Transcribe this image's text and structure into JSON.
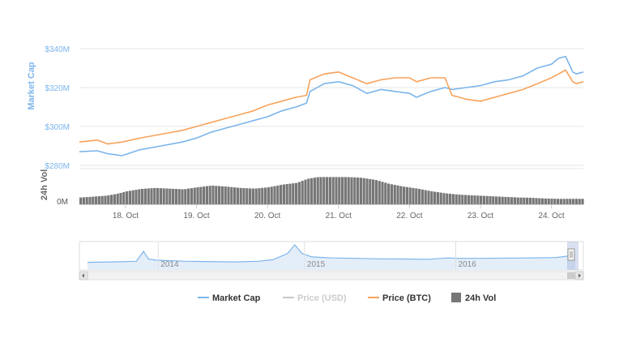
{
  "colors": {
    "market_cap": "#7cb5ec",
    "price_usd": "#c8c8c8",
    "price_btc": "#f7a35c",
    "volume": "#777777",
    "grid": "#e6e6e6",
    "axis_title": "#7cb5ec"
  },
  "legend": {
    "market_cap": "Market Cap",
    "price_usd": "Price (USD)",
    "price_btc": "Price (BTC)",
    "volume": "24h Vol"
  },
  "navigator": {
    "year_labels": [
      "2014",
      "2015",
      "2016"
    ],
    "scroll_left_icon": "arrow-left-icon",
    "scroll_right_icon": "arrow-right-icon",
    "handle_icon": "drag-handle-icon"
  },
  "chart_data": {
    "type": "line",
    "x_unit": "days",
    "x_range": [
      17.35,
      24.45
    ],
    "x_ticks": [
      18,
      19,
      20,
      21,
      22,
      23,
      24
    ],
    "x_tick_labels": [
      "18. Oct",
      "19. Oct",
      "20. Oct",
      "21. Oct",
      "22. Oct",
      "23. Oct",
      "24. Oct"
    ],
    "y_axis": {
      "title": "Market Cap",
      "ticks": [
        280,
        300,
        320,
        340
      ],
      "tick_labels": [
        "$280M",
        "$300M",
        "$320M",
        "$340M"
      ],
      "ylim": [
        280,
        340
      ]
    },
    "volume_axis": {
      "title": "24h Vol",
      "tick_labels": [
        "0M"
      ],
      "ylim": [
        0,
        1
      ]
    },
    "series": [
      {
        "name": "Market Cap",
        "x": [
          17.35,
          17.6,
          17.75,
          17.95,
          18.2,
          18.5,
          18.8,
          19.0,
          19.2,
          19.4,
          19.6,
          19.8,
          20.0,
          20.2,
          20.4,
          20.55,
          20.6,
          20.8,
          21.0,
          21.2,
          21.4,
          21.6,
          21.8,
          22.0,
          22.1,
          22.3,
          22.5,
          22.6,
          22.8,
          23.0,
          23.2,
          23.4,
          23.6,
          23.8,
          24.0,
          24.1,
          24.2,
          24.3,
          24.35,
          24.45
        ],
        "values": [
          287,
          287.5,
          286,
          285,
          288,
          290,
          292,
          294,
          297,
          299,
          301,
          303,
          305,
          308,
          310,
          312,
          318,
          322,
          323,
          321,
          317,
          319,
          318,
          317,
          315,
          318,
          320,
          319,
          320,
          321,
          323,
          324,
          326,
          330,
          332,
          335,
          336,
          328,
          327,
          328
        ]
      },
      {
        "name": "Price (BTC)",
        "x": [
          17.35,
          17.6,
          17.75,
          17.95,
          18.2,
          18.5,
          18.8,
          19.0,
          19.2,
          19.4,
          19.6,
          19.8,
          20.0,
          20.2,
          20.4,
          20.55,
          20.6,
          20.8,
          21.0,
          21.2,
          21.4,
          21.6,
          21.8,
          22.0,
          22.1,
          22.3,
          22.5,
          22.6,
          22.8,
          23.0,
          23.2,
          23.4,
          23.6,
          23.8,
          24.0,
          24.1,
          24.2,
          24.3,
          24.35,
          24.45
        ],
        "values": [
          292,
          293,
          291,
          292,
          294,
          296,
          298,
          300,
          302,
          304,
          306,
          308,
          311,
          313,
          315,
          316,
          324,
          327,
          328,
          325,
          322,
          324,
          325,
          325,
          323,
          325,
          325,
          316,
          314,
          313,
          315,
          317,
          319,
          322,
          325,
          327,
          329,
          323,
          322,
          323
        ]
      }
    ],
    "volume": {
      "name": "24h Vol",
      "x": [
        17.35,
        17.5,
        17.7,
        17.85,
        18.0,
        18.2,
        18.4,
        18.6,
        18.8,
        19.0,
        19.2,
        19.4,
        19.6,
        19.8,
        20.0,
        20.2,
        20.4,
        20.55,
        20.7,
        20.9,
        21.1,
        21.3,
        21.5,
        21.7,
        21.9,
        22.1,
        22.3,
        22.5,
        22.7,
        22.9,
        23.1,
        23.3,
        23.5,
        23.7,
        23.9,
        24.1,
        24.3,
        24.45
      ],
      "values": [
        0.2,
        0.22,
        0.25,
        0.3,
        0.38,
        0.45,
        0.48,
        0.46,
        0.44,
        0.5,
        0.55,
        0.52,
        0.48,
        0.46,
        0.5,
        0.58,
        0.63,
        0.75,
        0.8,
        0.8,
        0.8,
        0.78,
        0.72,
        0.6,
        0.52,
        0.46,
        0.38,
        0.32,
        0.28,
        0.26,
        0.24,
        0.22,
        0.2,
        0.19,
        0.17,
        0.16,
        0.16,
        0.16
      ]
    },
    "navigator_series": {
      "x": [
        0,
        0.05,
        0.1,
        0.115,
        0.125,
        0.14,
        0.2,
        0.3,
        0.35,
        0.38,
        0.41,
        0.425,
        0.44,
        0.46,
        0.5,
        0.55,
        0.6,
        0.7,
        0.74,
        0.76,
        0.8,
        0.9,
        0.96,
        0.99,
        1.0
      ],
      "values": [
        0.2,
        0.22,
        0.25,
        0.7,
        0.35,
        0.3,
        0.25,
        0.22,
        0.25,
        0.32,
        0.6,
        1.0,
        0.6,
        0.45,
        0.4,
        0.38,
        0.36,
        0.34,
        0.4,
        0.38,
        0.38,
        0.4,
        0.42,
        0.5,
        0.55
      ]
    }
  }
}
